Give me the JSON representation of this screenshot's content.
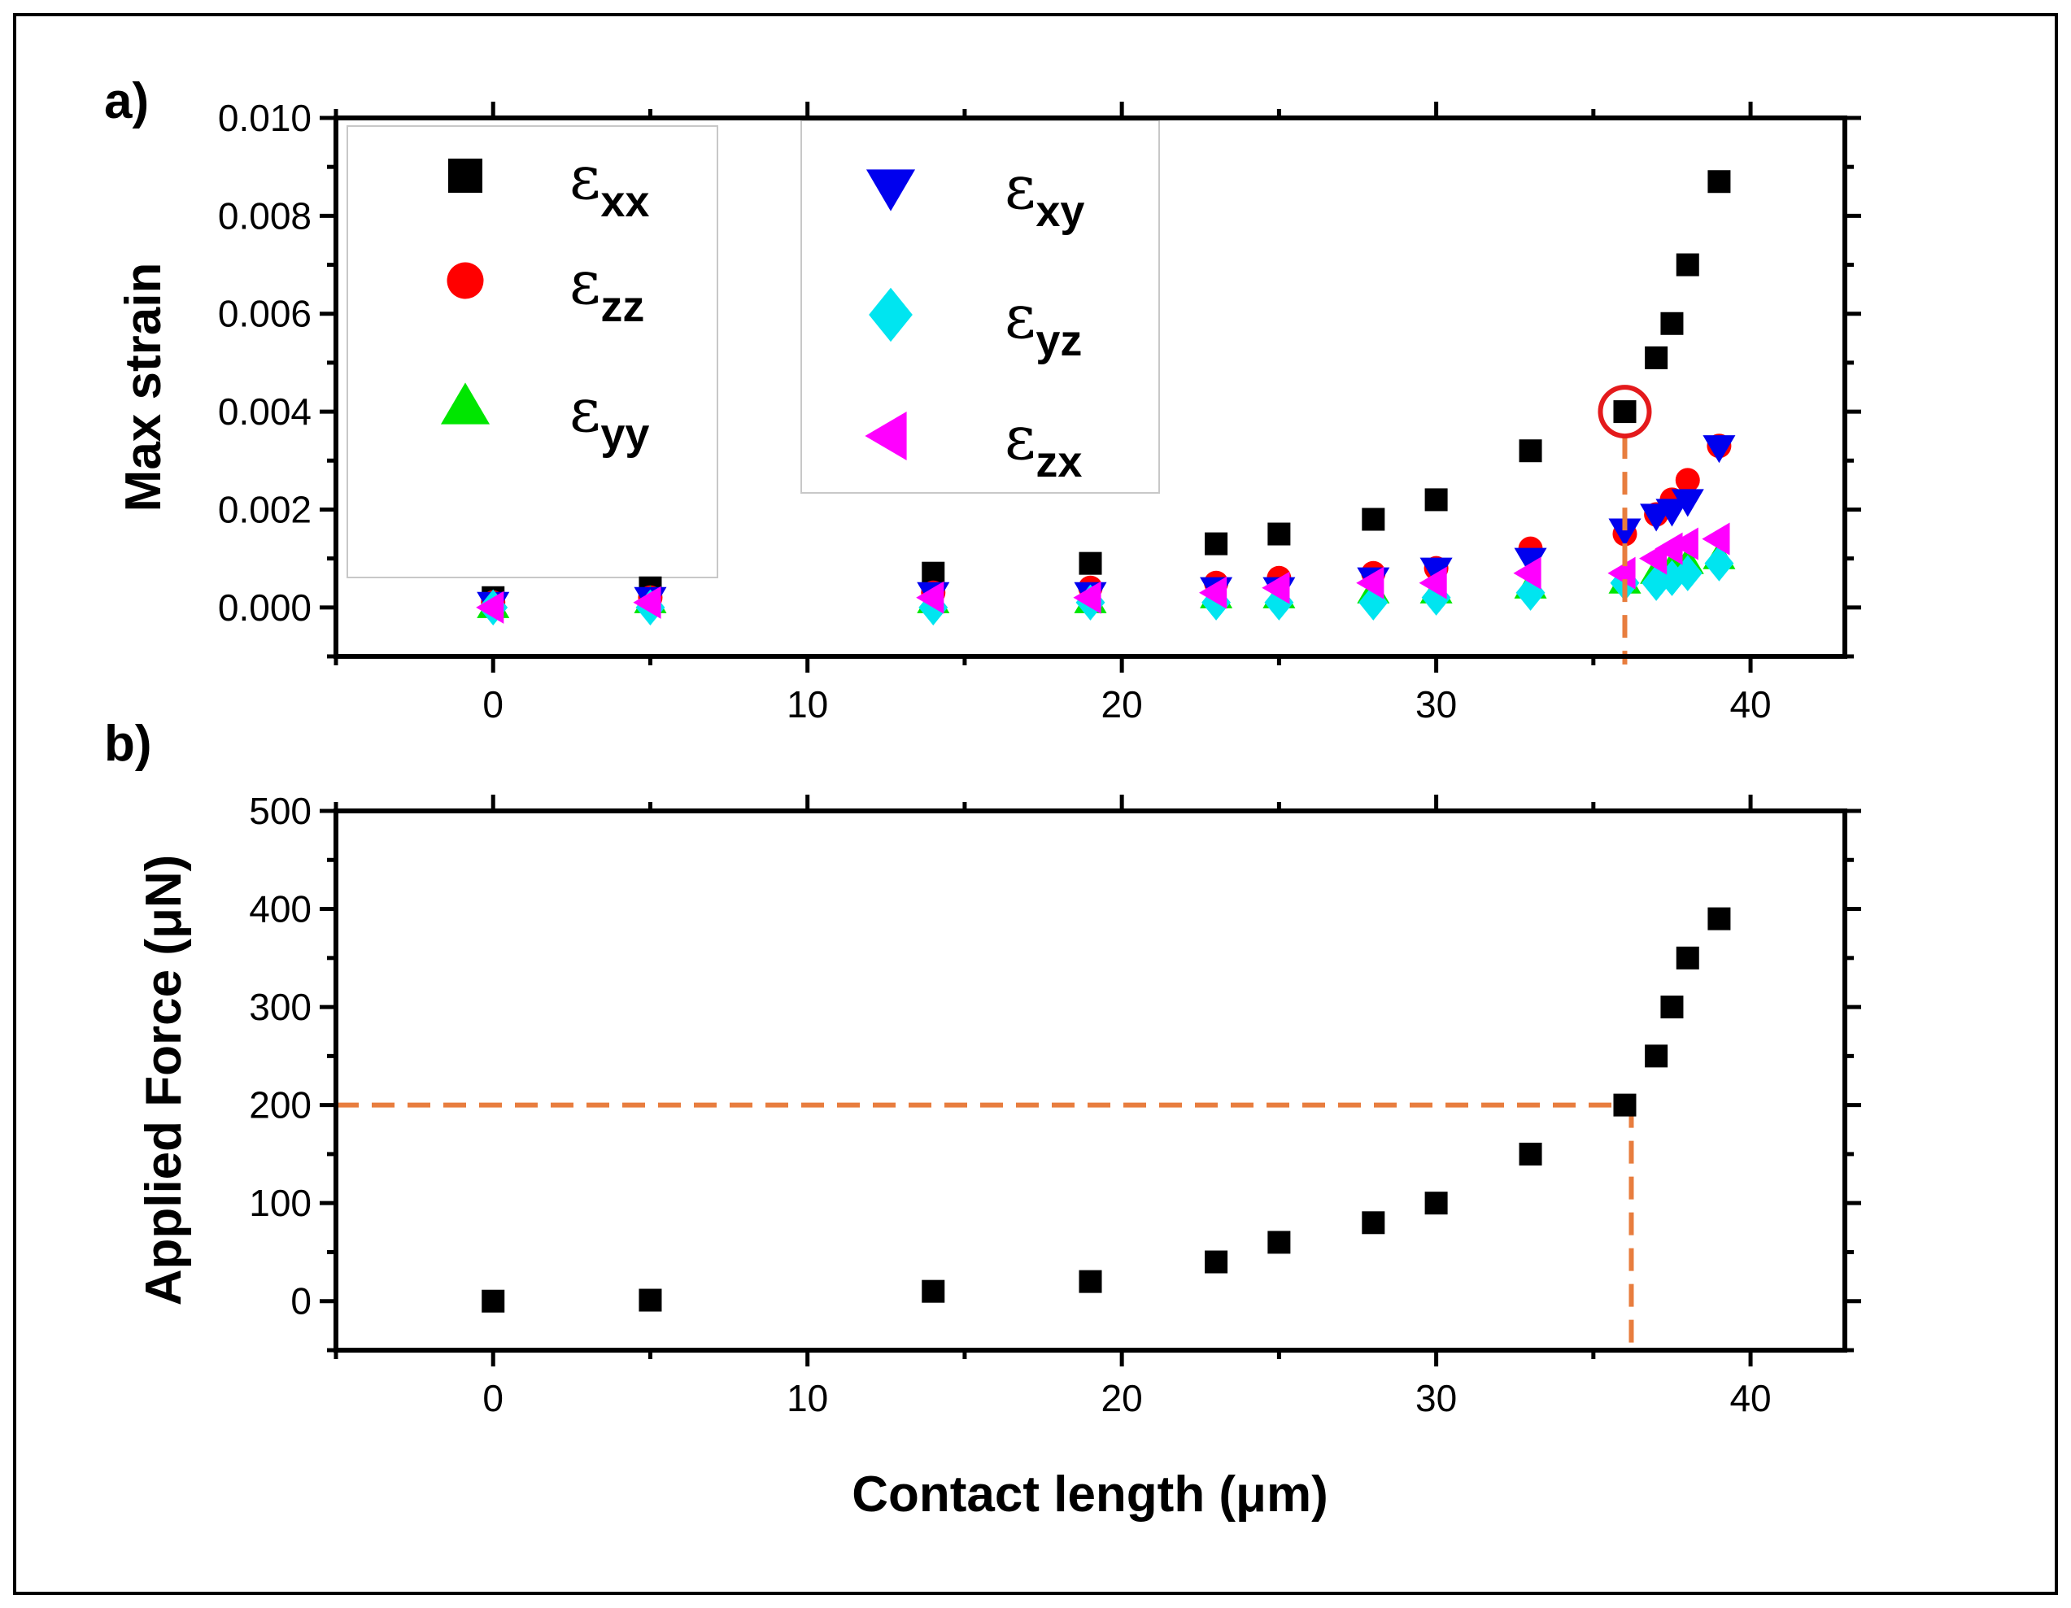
{
  "chart_data": [
    {
      "panel_label": "a)",
      "type": "scatter",
      "title": "",
      "xlabel": "",
      "ylabel": "Max strain",
      "xlim": [
        -5,
        43
      ],
      "ylim": [
        -0.001,
        0.01
      ],
      "x_ticks": [
        "0",
        "10",
        "20",
        "30",
        "40"
      ],
      "y_ticks": [
        "0.000",
        "0.002",
        "0.004",
        "0.006",
        "0.008",
        "0.010"
      ],
      "x": [
        0,
        5,
        14,
        19,
        23,
        25,
        28,
        30,
        33,
        36,
        37,
        37.5,
        38,
        39
      ],
      "series": [
        {
          "name": "εxx",
          "sym": "ε",
          "sub": "xx",
          "marker": "square",
          "color": "#000000",
          "values": [
            0.0002,
            0.0004,
            0.0007,
            0.0009,
            0.0013,
            0.0015,
            0.0018,
            0.0022,
            0.0032,
            0.004,
            0.0051,
            0.0058,
            0.007,
            0.0087
          ]
        },
        {
          "name": "εzz",
          "sym": "ε",
          "sub": "zz",
          "marker": "circle",
          "color": "#ff0000",
          "values": [
            0.0001,
            0.0002,
            0.0003,
            0.0004,
            0.0005,
            0.0006,
            0.0007,
            0.0008,
            0.0012,
            0.0015,
            0.0019,
            0.0022,
            0.0026,
            0.0033
          ]
        },
        {
          "name": "εyy",
          "sym": "ε",
          "sub": "yy",
          "marker": "triangle-up",
          "color": "#00e600",
          "values": [
            0.0,
            0.0001,
            0.0001,
            0.0001,
            0.0002,
            0.0002,
            0.0003,
            0.0003,
            0.0004,
            0.0005,
            0.0007,
            0.0008,
            0.0009,
            0.001
          ]
        },
        {
          "name": "εxy",
          "sym": "ε",
          "sub": "xy",
          "marker": "triangle-down",
          "color": "#0000ee",
          "values": [
            0.0001,
            0.0002,
            0.0003,
            0.0003,
            0.0004,
            0.0004,
            0.0006,
            0.0008,
            0.001,
            0.0016,
            0.0019,
            0.002,
            0.0022,
            0.0033
          ]
        },
        {
          "name": "εyz",
          "sym": "ε",
          "sub": "yz",
          "marker": "diamond",
          "color": "#00e5f0",
          "values": [
            0.0,
            0.0,
            0.0,
            0.0001,
            0.0001,
            0.0001,
            0.0001,
            0.0002,
            0.0003,
            0.0005,
            0.0005,
            0.0006,
            0.0007,
            0.0009
          ]
        },
        {
          "name": "εzx",
          "sym": "ε",
          "sub": "zx",
          "marker": "triangle-left",
          "color": "#ff00ff",
          "values": [
            0.0,
            0.0001,
            0.0002,
            0.0002,
            0.0003,
            0.0004,
            0.0005,
            0.0005,
            0.0007,
            0.0007,
            0.001,
            0.0012,
            0.0013,
            0.0014
          ]
        }
      ],
      "annotations": {
        "highlight_circle": {
          "x": 36,
          "y": 0.004,
          "color": "#e41a1c"
        },
        "guide_line": {
          "x": 36,
          "y_from": 0.004,
          "color": "#e87d3e"
        }
      }
    },
    {
      "panel_label": "b)",
      "type": "scatter",
      "title": "",
      "xlabel": "Contact length (μm)",
      "ylabel": "Applied Force (μN)",
      "xlim": [
        -5,
        43
      ],
      "ylim": [
        -50,
        500
      ],
      "x_ticks": [
        "0",
        "10",
        "20",
        "30",
        "40"
      ],
      "y_ticks": [
        "0",
        "100",
        "200",
        "300",
        "400",
        "500"
      ],
      "x": [
        0,
        5,
        14,
        19,
        23,
        25,
        28,
        30,
        33,
        36,
        37,
        37.5,
        38,
        39
      ],
      "series": [
        {
          "name": "Applied Force",
          "marker": "square",
          "color": "#000000",
          "values": [
            0,
            1,
            10,
            20,
            40,
            60,
            80,
            100,
            150,
            200,
            250,
            300,
            350,
            390
          ]
        }
      ],
      "annotations": {
        "guide_lines": {
          "x": 36,
          "y": 200,
          "color": "#e87d3e"
        }
      }
    }
  ]
}
